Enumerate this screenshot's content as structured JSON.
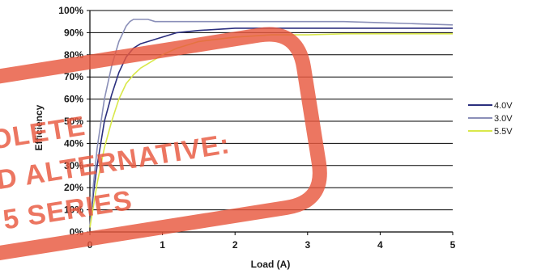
{
  "chart_data": {
    "type": "line",
    "title": "",
    "xlabel": "Load (A)",
    "ylabel": "Efficiency",
    "xlim": [
      0,
      5
    ],
    "ylim": [
      0,
      100
    ],
    "x_ticks": [
      "0",
      "1",
      "2",
      "3",
      "4",
      "5"
    ],
    "y_ticks": [
      "0%",
      "10%",
      "20%",
      "30%",
      "40%",
      "50%",
      "60%",
      "70%",
      "80%",
      "90%",
      "100%"
    ],
    "grid": "horizontal",
    "legend_position": "right",
    "series": [
      {
        "name": "4.0V",
        "color": "#2b2f7e",
        "points": [
          [
            0.0,
            2
          ],
          [
            0.05,
            18
          ],
          [
            0.1,
            30
          ],
          [
            0.15,
            40
          ],
          [
            0.2,
            50
          ],
          [
            0.3,
            62
          ],
          [
            0.4,
            72
          ],
          [
            0.5,
            79
          ],
          [
            0.6,
            83
          ],
          [
            0.7,
            85
          ],
          [
            0.8,
            86
          ],
          [
            0.9,
            87
          ],
          [
            1.0,
            88
          ],
          [
            1.2,
            90
          ],
          [
            1.5,
            91
          ],
          [
            2.0,
            92
          ],
          [
            2.5,
            92
          ],
          [
            3.0,
            92
          ],
          [
            3.5,
            92
          ],
          [
            4.0,
            92
          ],
          [
            4.5,
            92
          ],
          [
            5.0,
            92
          ]
        ]
      },
      {
        "name": "3.0V",
        "color": "#8a8fb8",
        "points": [
          [
            0.0,
            2
          ],
          [
            0.05,
            22
          ],
          [
            0.1,
            38
          ],
          [
            0.2,
            60
          ],
          [
            0.3,
            75
          ],
          [
            0.4,
            86
          ],
          [
            0.5,
            93
          ],
          [
            0.55,
            95
          ],
          [
            0.6,
            96
          ],
          [
            0.7,
            96
          ],
          [
            0.8,
            96
          ],
          [
            0.9,
            95
          ],
          [
            1.0,
            95
          ],
          [
            1.2,
            95
          ],
          [
            1.5,
            95
          ],
          [
            2.0,
            95
          ],
          [
            2.5,
            95
          ],
          [
            3.0,
            95
          ],
          [
            3.5,
            95
          ],
          [
            4.0,
            94.5
          ],
          [
            4.5,
            94
          ],
          [
            5.0,
            93.5
          ]
        ]
      },
      {
        "name": "5.5V",
        "color": "#d9e84a",
        "points": [
          [
            0.0,
            2
          ],
          [
            0.05,
            12
          ],
          [
            0.1,
            22
          ],
          [
            0.2,
            38
          ],
          [
            0.3,
            50
          ],
          [
            0.4,
            60
          ],
          [
            0.5,
            67
          ],
          [
            0.6,
            71
          ],
          [
            0.7,
            74
          ],
          [
            0.8,
            76
          ],
          [
            0.9,
            78
          ],
          [
            1.0,
            80
          ],
          [
            1.2,
            83
          ],
          [
            1.5,
            86
          ],
          [
            2.0,
            88
          ],
          [
            2.5,
            89
          ],
          [
            3.0,
            89
          ],
          [
            3.5,
            89.5
          ],
          [
            4.0,
            89.5
          ],
          [
            4.5,
            89.5
          ],
          [
            5.0,
            89.5
          ]
        ]
      }
    ]
  },
  "stamp": {
    "color": "#e8583e",
    "lines": [
      "OLETE",
      "D ALTERNATIVE:",
      "5 SERIES"
    ]
  }
}
